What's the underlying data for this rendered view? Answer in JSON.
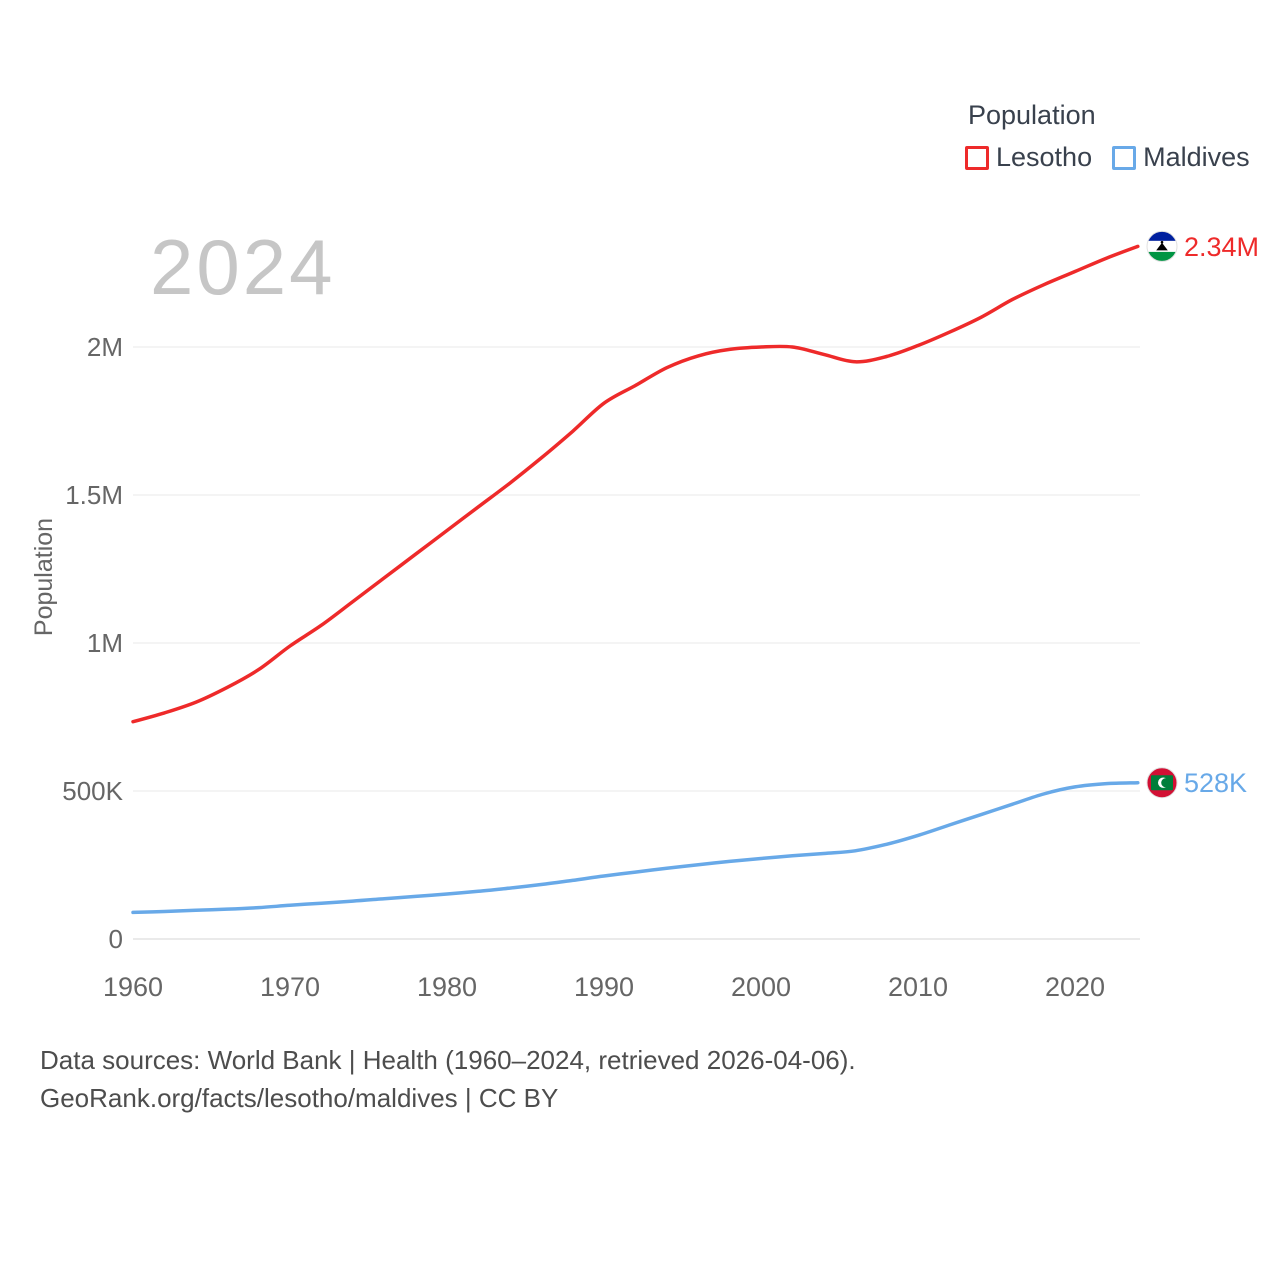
{
  "watermark": "2024",
  "legend": {
    "title": "Population",
    "items": [
      {
        "label": "Lesotho",
        "color": "#ee2a2a"
      },
      {
        "label": "Maldives",
        "color": "#68a9e8"
      }
    ]
  },
  "axis": {
    "y_label": "Population",
    "x_ticks": [
      1960,
      1970,
      1980,
      1990,
      2000,
      2010,
      2020
    ],
    "y_ticks": [
      {
        "value": 0,
        "label": "0"
      },
      {
        "value": 500000,
        "label": "500K"
      },
      {
        "value": 1000000,
        "label": "1M"
      },
      {
        "value": 1500000,
        "label": "1.5M"
      },
      {
        "value": 2000000,
        "label": "2M"
      }
    ]
  },
  "footer": {
    "line1": "Data sources: World Bank | Health (1960–2024, retrieved 2026-04-06).",
    "line2": "GeoRank.org/facts/lesotho/maldives | CC BY"
  },
  "chart_data": {
    "type": "line",
    "title": "Population comparison 1960–2024",
    "xlabel": "",
    "ylabel": "Population",
    "xlim": [
      1960,
      2024
    ],
    "ylim": [
      0,
      2400000
    ],
    "grid": "horizontal",
    "legend_position": "top-right",
    "x": [
      1960,
      1962,
      1964,
      1966,
      1968,
      1970,
      1972,
      1974,
      1976,
      1978,
      1980,
      1982,
      1984,
      1986,
      1988,
      1990,
      1992,
      1994,
      1996,
      1998,
      2000,
      2002,
      2004,
      2006,
      2008,
      2010,
      2012,
      2014,
      2016,
      2018,
      2020,
      2022,
      2024
    ],
    "series": [
      {
        "name": "Lesotho",
        "color": "#ee2a2a",
        "values": [
          734000,
          764000,
          800000,
          850000,
          910000,
          990000,
          1060000,
          1140000,
          1220000,
          1300000,
          1380000,
          1460000,
          1540000,
          1625000,
          1715000,
          1810000,
          1870000,
          1930000,
          1970000,
          1992000,
          2000000,
          2000000,
          1975000,
          1950000,
          1968000,
          2005000,
          2050000,
          2100000,
          2160000,
          2210000,
          2255000,
          2300000,
          2340000
        ]
      },
      {
        "name": "Maldives",
        "color": "#68a9e8",
        "values": [
          90000,
          93000,
          97000,
          101000,
          106000,
          114000,
          121000,
          128000,
          136000,
          144000,
          152000,
          161000,
          172000,
          184000,
          198000,
          213000,
          226000,
          239000,
          251000,
          262000,
          272000,
          281000,
          289000,
          298000,
          320000,
          350000,
          385000,
          420000,
          455000,
          490000,
          514000,
          525000,
          528000
        ]
      }
    ],
    "end_labels": [
      {
        "series": "Lesotho",
        "label": "2.34M",
        "value": 2340000
      },
      {
        "series": "Maldives",
        "label": "528K",
        "value": 528000
      }
    ]
  }
}
